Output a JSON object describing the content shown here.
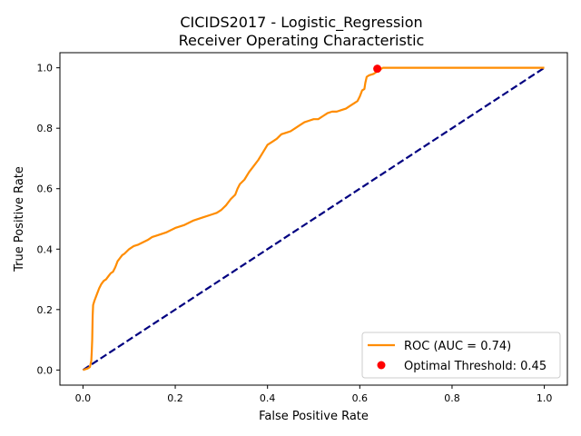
{
  "chart_data": {
    "type": "line",
    "title": "CICIDS2017 - Logistic_Regression\nReceiver Operating Characteristic",
    "title_lines": [
      "CICIDS2017 - Logistic_Regression",
      "Receiver Operating Characteristic"
    ],
    "xlabel": "False Positive Rate",
    "ylabel": "True Positive Rate",
    "xlim": [
      -0.05,
      1.05
    ],
    "ylim": [
      -0.05,
      1.05
    ],
    "xticks": [
      0.0,
      0.2,
      0.4,
      0.6,
      0.8,
      1.0
    ],
    "xtick_labels": [
      "0.0",
      "0.2",
      "0.4",
      "0.6",
      "0.8",
      "1.0"
    ],
    "yticks": [
      0.0,
      0.2,
      0.4,
      0.6,
      0.8,
      1.0
    ],
    "ytick_labels": [
      "0.0",
      "0.2",
      "0.4",
      "0.6",
      "0.8",
      "1.0"
    ],
    "grid": false,
    "legend_position": "lower-right",
    "series": [
      {
        "name": "ROC (AUC = 0.74)",
        "kind": "line",
        "color": "#ff8c00",
        "x": [
          0.0,
          0.01,
          0.015,
          0.018,
          0.019,
          0.02,
          0.021,
          0.022,
          0.025,
          0.03,
          0.035,
          0.04,
          0.045,
          0.05,
          0.055,
          0.06,
          0.065,
          0.07,
          0.075,
          0.08,
          0.085,
          0.09,
          0.1,
          0.11,
          0.12,
          0.14,
          0.15,
          0.16,
          0.18,
          0.2,
          0.22,
          0.24,
          0.26,
          0.28,
          0.29,
          0.3,
          0.31,
          0.32,
          0.33,
          0.335,
          0.34,
          0.35,
          0.36,
          0.37,
          0.38,
          0.39,
          0.4,
          0.41,
          0.42,
          0.43,
          0.44,
          0.45,
          0.46,
          0.47,
          0.48,
          0.49,
          0.5,
          0.51,
          0.52,
          0.53,
          0.54,
          0.55,
          0.56,
          0.57,
          0.58,
          0.585,
          0.59,
          0.595,
          0.6,
          0.605,
          0.61,
          0.612,
          0.615,
          0.62,
          0.63,
          0.635,
          0.64,
          0.645,
          0.65,
          0.7,
          0.8,
          0.9,
          1.0
        ],
        "y": [
          0.0,
          0.005,
          0.01,
          0.03,
          0.06,
          0.1,
          0.18,
          0.215,
          0.23,
          0.25,
          0.27,
          0.285,
          0.295,
          0.3,
          0.31,
          0.32,
          0.325,
          0.34,
          0.36,
          0.37,
          0.38,
          0.385,
          0.4,
          0.41,
          0.415,
          0.43,
          0.44,
          0.445,
          0.455,
          0.47,
          0.48,
          0.495,
          0.505,
          0.515,
          0.52,
          0.53,
          0.545,
          0.565,
          0.58,
          0.6,
          0.615,
          0.63,
          0.655,
          0.675,
          0.695,
          0.72,
          0.745,
          0.755,
          0.765,
          0.78,
          0.785,
          0.79,
          0.8,
          0.81,
          0.82,
          0.825,
          0.83,
          0.83,
          0.84,
          0.85,
          0.855,
          0.855,
          0.86,
          0.865,
          0.875,
          0.88,
          0.885,
          0.89,
          0.905,
          0.925,
          0.93,
          0.95,
          0.97,
          0.975,
          0.98,
          0.985,
          0.99,
          0.995,
          1.0,
          1.0,
          1.0,
          1.0,
          1.0
        ]
      },
      {
        "name": "",
        "kind": "dashed-line",
        "color": "#000080",
        "x": [
          0.0,
          1.0
        ],
        "y": [
          0.0,
          1.0
        ]
      },
      {
        "name": "Optimal Threshold: 0.45",
        "kind": "point",
        "color": "#ff0000",
        "x": [
          0.638
        ],
        "y": [
          0.997
        ]
      }
    ],
    "legend": [
      {
        "label": "ROC (AUC = 0.74)",
        "marker": "line",
        "color": "#ff8c00"
      },
      {
        "label": "Optimal Threshold: 0.45",
        "marker": "dot",
        "color": "#ff0000"
      }
    ]
  }
}
